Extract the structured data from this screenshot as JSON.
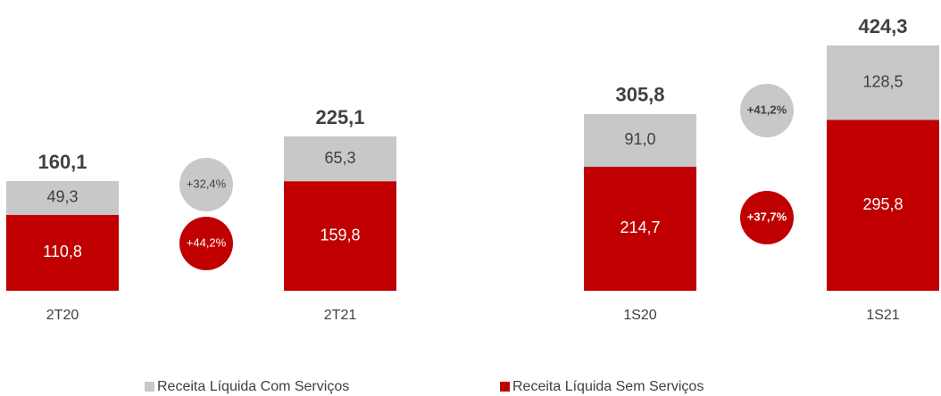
{
  "chart_data": [
    {
      "type": "bar",
      "stacked": true,
      "categories": [
        "2T20",
        "2T21"
      ],
      "series": [
        {
          "name": "Receita Líquida Com Serviços",
          "color": "#c8c8c8",
          "values": [
            49.3,
            65.3
          ],
          "value_labels": [
            "49,3",
            "65,3"
          ]
        },
        {
          "name": "Receita Líquida Sem Serviços",
          "color": "#c00000",
          "values": [
            110.8,
            159.8
          ],
          "value_labels": [
            "110,8",
            "159,8"
          ]
        }
      ],
      "totals": [
        160.1,
        225.1
      ],
      "total_labels": [
        "160,1",
        "225,1"
      ],
      "annotations": [
        "+32,4%",
        "+44,2%"
      ]
    },
    {
      "type": "bar",
      "stacked": true,
      "categories": [
        "1S20",
        "1S21"
      ],
      "series": [
        {
          "color": "#c8c8c8",
          "values": [
            91.0,
            128.5
          ],
          "value_labels": [
            "91,0",
            "128,5"
          ]
        },
        {
          "color": "#c00000",
          "values": [
            214.7,
            295.8
          ],
          "value_labels": [
            "214,7",
            "295,8"
          ]
        }
      ],
      "totals": [
        305.8,
        424.3
      ],
      "total_labels": [
        "305,8",
        "424,3"
      ],
      "annotations": [
        "+41,2%",
        "+37,7%"
      ]
    }
  ]
}
